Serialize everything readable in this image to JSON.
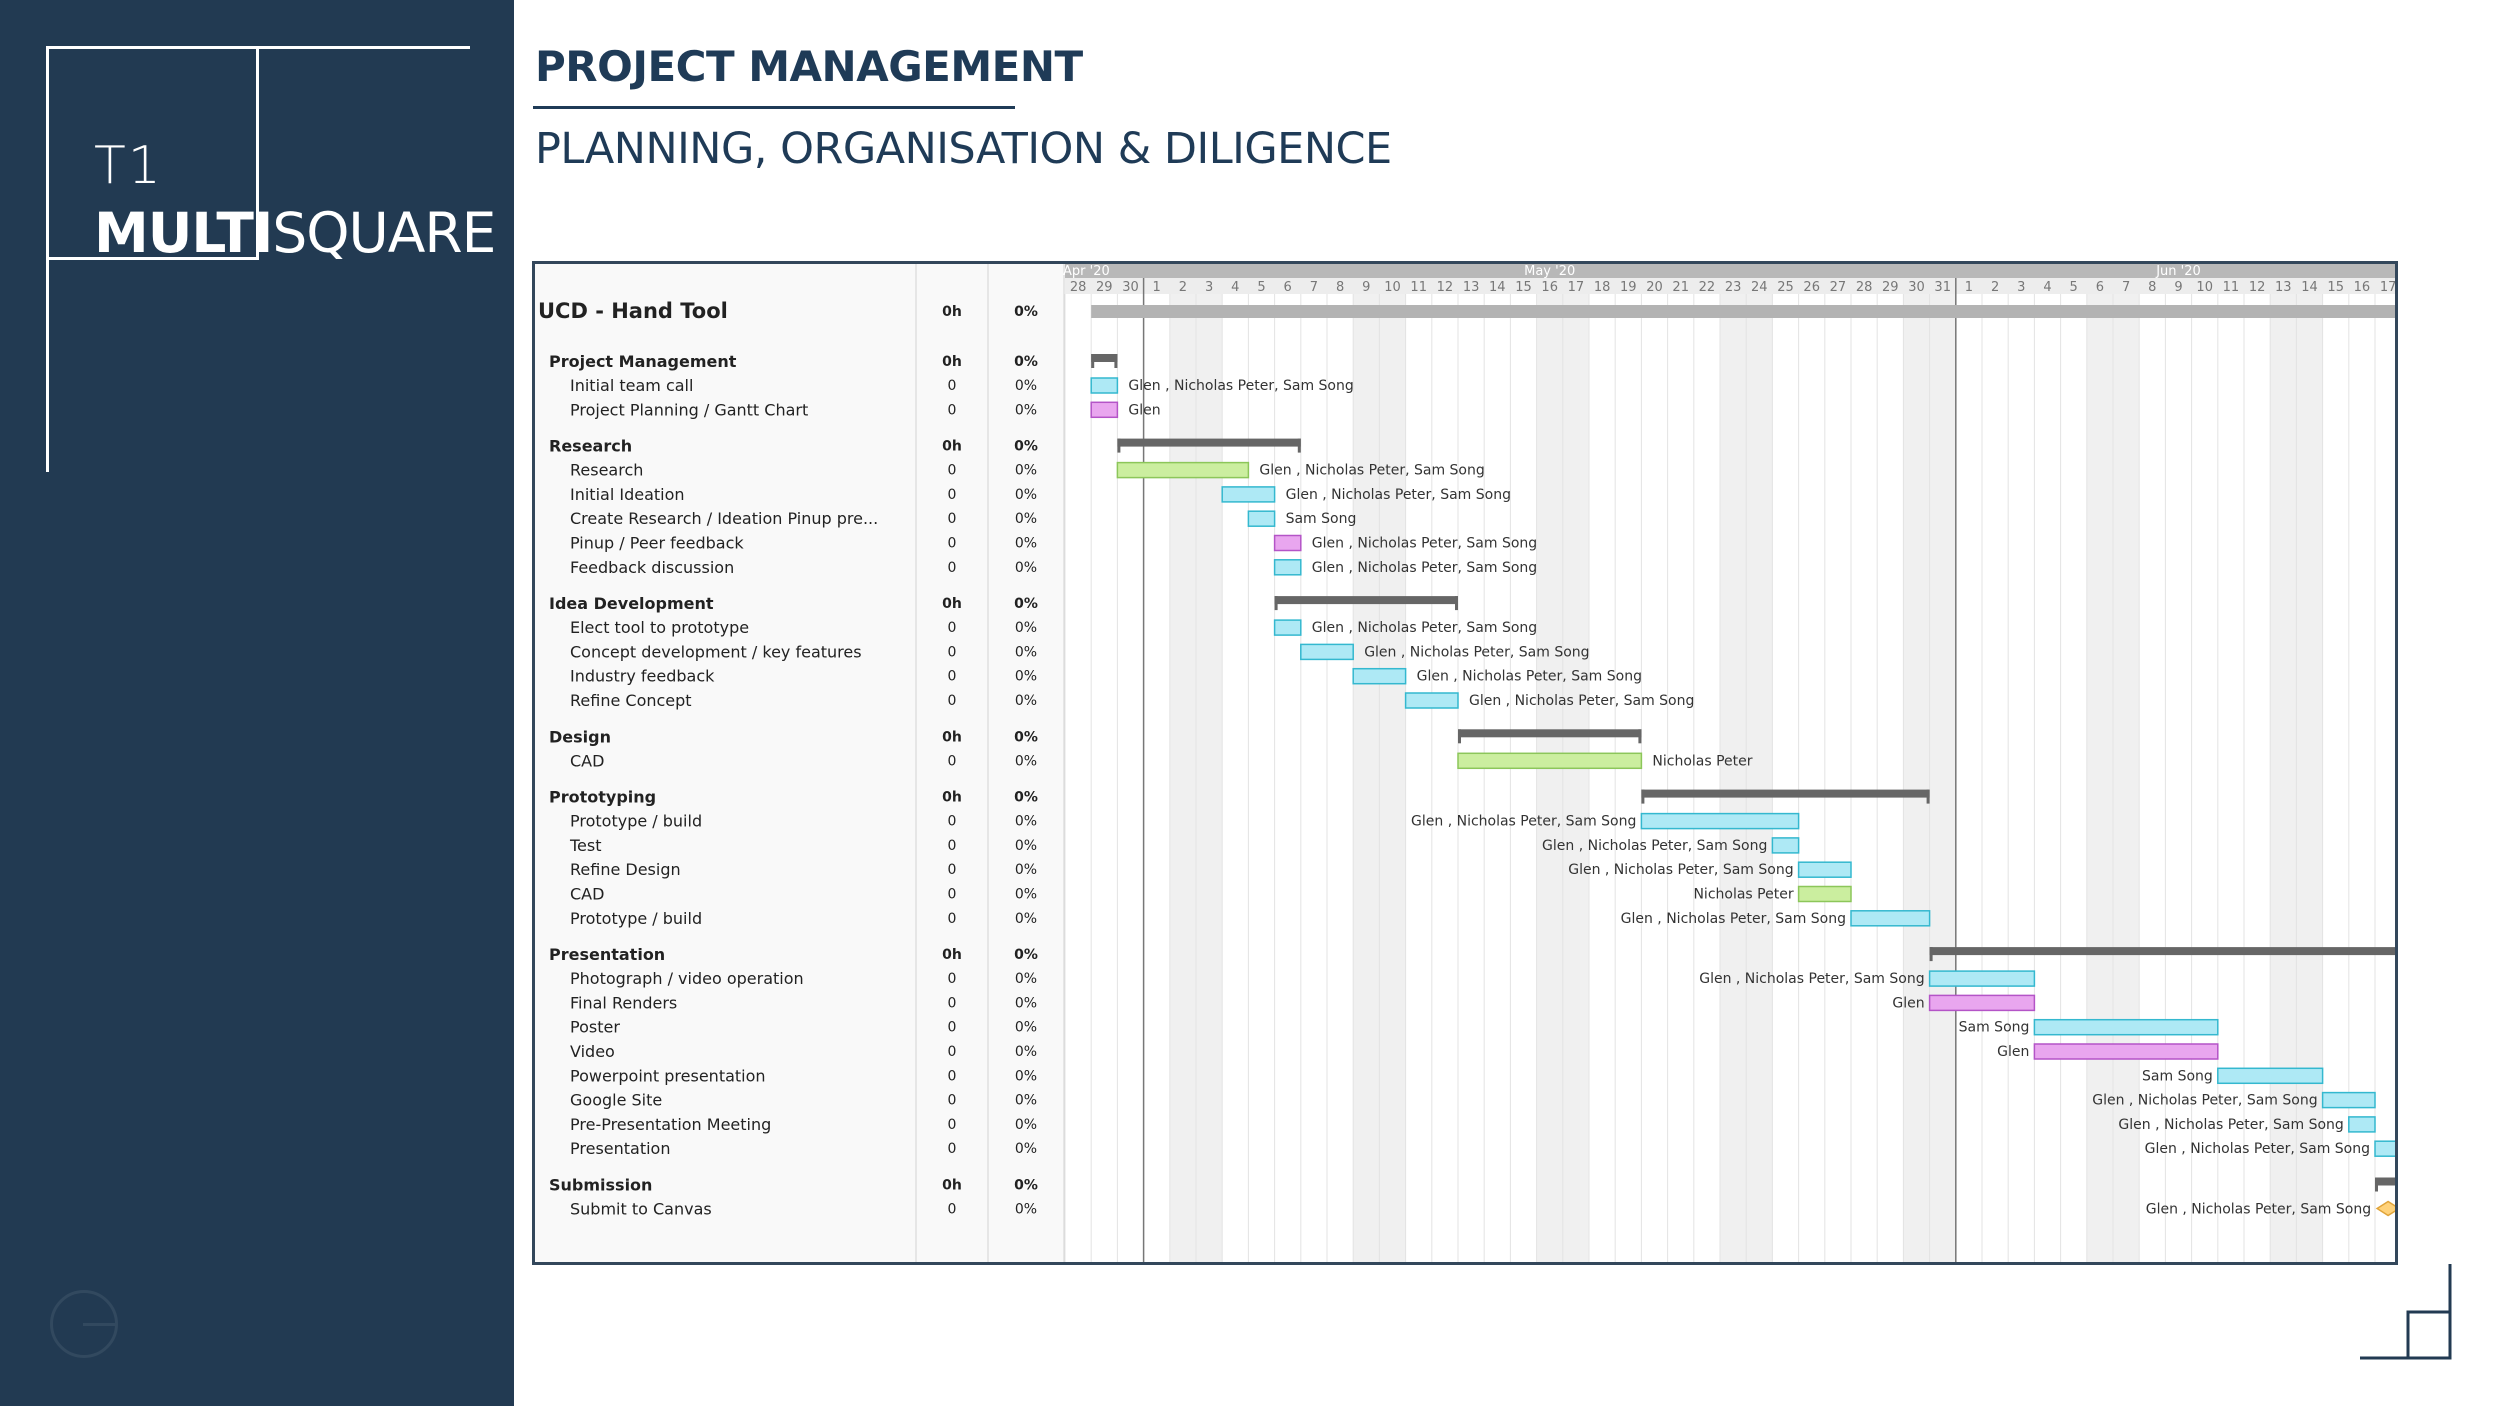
{
  "brand": {
    "code": "T1",
    "name_bold": "MULTI",
    "name_light": "SQUARE"
  },
  "header": {
    "title": "PROJECT MANAGEMENT",
    "subtitle": "PLANNING, ORGANISATION & DILIGENCE"
  },
  "colors": {
    "sidebar": "#223a52",
    "heading": "#1f3b57",
    "task_cyan": "#aee9f5",
    "task_magenta": "#e9a6ef",
    "task_green": "#cbee9f",
    "summary_bar": "#666666",
    "project_bar": "#b3b3b3",
    "milestone": "#ffd27a"
  },
  "chart_data": {
    "type": "gantt",
    "months": [
      {
        "label": "Apr '20",
        "start_day": 0
      },
      {
        "label": "May '20",
        "start_day": 3
      },
      {
        "label": "Jun '20",
        "start_day": 34
      }
    ],
    "day_labels": [
      "28",
      "29",
      "30",
      "1",
      "2",
      "3",
      "4",
      "5",
      "6",
      "7",
      "8",
      "9",
      "10",
      "11",
      "12",
      "13",
      "14",
      "15",
      "16",
      "17",
      "18",
      "19",
      "20",
      "21",
      "22",
      "23",
      "24",
      "25",
      "26",
      "27",
      "28",
      "29",
      "30",
      "31",
      "1",
      "2",
      "3",
      "4",
      "5",
      "6",
      "7",
      "8",
      "9",
      "10",
      "11",
      "12",
      "13",
      "14",
      "15",
      "16",
      "17"
    ],
    "weekend_days": [
      4,
      5,
      11,
      12,
      18,
      19,
      25,
      26,
      32,
      33,
      39,
      40,
      46,
      47
    ],
    "rows": [
      {
        "kind": "project",
        "name": "UCD - Hand Tool",
        "work": "0h",
        "complete": "0%",
        "start": 1,
        "end": 51
      },
      {
        "kind": "group",
        "name": "Project Management",
        "work": "0h",
        "complete": "0%",
        "start": 1,
        "end": 2
      },
      {
        "kind": "task",
        "name": "Initial team call",
        "work": "0",
        "complete": "0%",
        "start": 1,
        "end": 2,
        "color": "cyan",
        "resources": "Glen , Nicholas Peter, Sam Song",
        "label_side": "right"
      },
      {
        "kind": "task",
        "name": "Project Planning / Gantt Chart",
        "work": "0",
        "complete": "0%",
        "start": 1,
        "end": 2,
        "color": "magenta",
        "resources": "Glen",
        "label_side": "right"
      },
      {
        "kind": "group",
        "name": "Research",
        "work": "0h",
        "complete": "0%",
        "start": 2,
        "end": 9
      },
      {
        "kind": "task",
        "name": "Research",
        "work": "0",
        "complete": "0%",
        "start": 2,
        "end": 7,
        "color": "green",
        "resources": "Glen , Nicholas Peter, Sam Song",
        "label_side": "right"
      },
      {
        "kind": "task",
        "name": "Initial Ideation",
        "work": "0",
        "complete": "0%",
        "start": 6,
        "end": 8,
        "color": "cyan",
        "resources": "Glen , Nicholas Peter, Sam Song",
        "label_side": "right"
      },
      {
        "kind": "task",
        "name": "Create Research / Ideation Pinup pre...",
        "work": "0",
        "complete": "0%",
        "start": 7,
        "end": 8,
        "color": "cyan",
        "resources": "Sam Song",
        "label_side": "right"
      },
      {
        "kind": "task",
        "name": "Pinup / Peer feedback",
        "work": "0",
        "complete": "0%",
        "start": 8,
        "end": 9,
        "color": "magenta",
        "resources": "Glen , Nicholas Peter, Sam Song",
        "label_side": "right"
      },
      {
        "kind": "task",
        "name": "Feedback discussion",
        "work": "0",
        "complete": "0%",
        "start": 8,
        "end": 9,
        "color": "cyan",
        "resources": "Glen , Nicholas Peter, Sam Song",
        "label_side": "right"
      },
      {
        "kind": "group",
        "name": "Idea Development",
        "work": "0h",
        "complete": "0%",
        "start": 8,
        "end": 15
      },
      {
        "kind": "task",
        "name": "Elect tool to prototype",
        "work": "0",
        "complete": "0%",
        "start": 8,
        "end": 9,
        "color": "cyan",
        "resources": "Glen , Nicholas Peter, Sam Song",
        "label_side": "right"
      },
      {
        "kind": "task",
        "name": "Concept development / key features",
        "work": "0",
        "complete": "0%",
        "start": 9,
        "end": 11,
        "color": "cyan",
        "resources": "Glen , Nicholas Peter, Sam Song",
        "label_side": "right"
      },
      {
        "kind": "task",
        "name": "Industry feedback",
        "work": "0",
        "complete": "0%",
        "start": 11,
        "end": 13,
        "color": "cyan",
        "resources": "Glen , Nicholas Peter, Sam Song",
        "label_side": "right"
      },
      {
        "kind": "task",
        "name": "Refine Concept",
        "work": "0",
        "complete": "0%",
        "start": 13,
        "end": 15,
        "color": "cyan",
        "resources": "Glen , Nicholas Peter, Sam Song",
        "label_side": "right"
      },
      {
        "kind": "group",
        "name": "Design",
        "work": "0h",
        "complete": "0%",
        "start": 15,
        "end": 22
      },
      {
        "kind": "task",
        "name": "CAD",
        "work": "0",
        "complete": "0%",
        "start": 15,
        "end": 22,
        "color": "green",
        "resources": "Nicholas Peter",
        "label_side": "right"
      },
      {
        "kind": "group",
        "name": "Prototyping",
        "work": "0h",
        "complete": "0%",
        "start": 22,
        "end": 33
      },
      {
        "kind": "task",
        "name": "Prototype / build",
        "work": "0",
        "complete": "0%",
        "start": 22,
        "end": 28,
        "color": "cyan",
        "resources": "Glen , Nicholas Peter, Sam Song",
        "label_side": "left"
      },
      {
        "kind": "task",
        "name": "Test",
        "work": "0",
        "complete": "0%",
        "start": 27,
        "end": 28,
        "color": "cyan",
        "resources": "Glen , Nicholas Peter, Sam Song",
        "label_side": "left"
      },
      {
        "kind": "task",
        "name": "Refine Design",
        "work": "0",
        "complete": "0%",
        "start": 28,
        "end": 30,
        "color": "cyan",
        "resources": "Glen , Nicholas Peter, Sam Song",
        "label_side": "left"
      },
      {
        "kind": "task",
        "name": "CAD",
        "work": "0",
        "complete": "0%",
        "start": 28,
        "end": 30,
        "color": "green",
        "resources": "Nicholas Peter",
        "label_side": "left"
      },
      {
        "kind": "task",
        "name": "Prototype / build",
        "work": "0",
        "complete": "0%",
        "start": 30,
        "end": 33,
        "color": "cyan",
        "resources": "Glen , Nicholas Peter, Sam Song",
        "label_side": "left"
      },
      {
        "kind": "group",
        "name": "Presentation",
        "work": "0h",
        "complete": "0%",
        "start": 33,
        "end": 51
      },
      {
        "kind": "task",
        "name": "Photograph / video operation",
        "work": "0",
        "complete": "0%",
        "start": 33,
        "end": 37,
        "color": "cyan",
        "resources": "Glen , Nicholas Peter, Sam Song",
        "label_side": "left"
      },
      {
        "kind": "task",
        "name": "Final Renders",
        "work": "0",
        "complete": "0%",
        "start": 33,
        "end": 37,
        "color": "magenta",
        "resources": "Glen",
        "label_side": "left"
      },
      {
        "kind": "task",
        "name": "Poster",
        "work": "0",
        "complete": "0%",
        "start": 37,
        "end": 44,
        "color": "cyan",
        "resources": "Sam Song",
        "label_side": "left"
      },
      {
        "kind": "task",
        "name": "Video",
        "work": "0",
        "complete": "0%",
        "start": 37,
        "end": 44,
        "color": "magenta",
        "resources": "Glen",
        "label_side": "left"
      },
      {
        "kind": "task",
        "name": "Powerpoint presentation",
        "work": "0",
        "complete": "0%",
        "start": 44,
        "end": 48,
        "color": "cyan",
        "resources": "Sam Song",
        "label_side": "left"
      },
      {
        "kind": "task",
        "name": "Google Site",
        "work": "0",
        "complete": "0%",
        "start": 48,
        "end": 50,
        "color": "cyan",
        "resources": "Glen , Nicholas Peter, Sam Song",
        "label_side": "left"
      },
      {
        "kind": "task",
        "name": "Pre-Presentation Meeting",
        "work": "0",
        "complete": "0%",
        "start": 49,
        "end": 50,
        "color": "cyan",
        "resources": "Glen , Nicholas Peter, Sam Song",
        "label_side": "left"
      },
      {
        "kind": "task",
        "name": "Presentation",
        "work": "0",
        "complete": "0%",
        "start": 50,
        "end": 51,
        "color": "cyan",
        "resources": "Glen , Nicholas Peter, Sam Song",
        "label_side": "left"
      },
      {
        "kind": "group",
        "name": "Submission",
        "work": "0h",
        "complete": "0%",
        "start": 50,
        "end": 51
      },
      {
        "kind": "milestone",
        "name": "Submit to Canvas",
        "work": "0",
        "complete": "0%",
        "start": 50.5,
        "end": 50.5,
        "color": "milestone",
        "resources": "Glen , Nicholas Peter, Sam Song",
        "label_side": "left"
      }
    ]
  }
}
